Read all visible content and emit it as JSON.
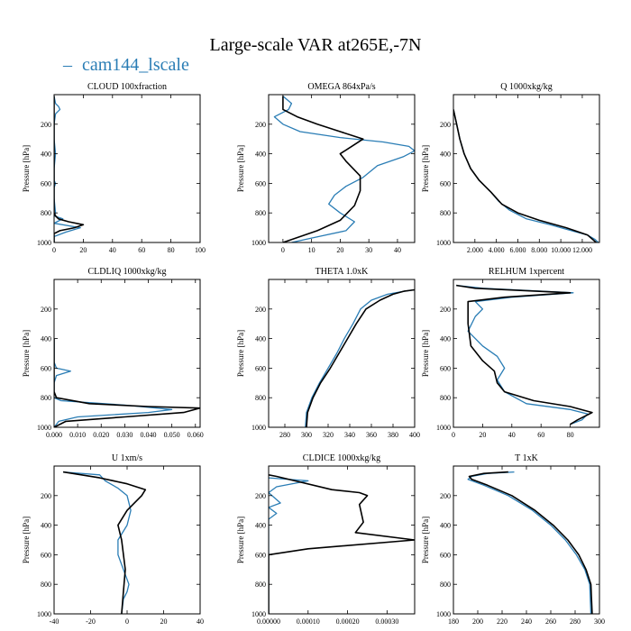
{
  "figure": {
    "title": "Large-scale VAR at265E,-7N",
    "legend": {
      "dash": "–",
      "label": "cam144_lscale"
    }
  },
  "colors": {
    "series_lscale": "#2a7db5",
    "series_ref": "#000000"
  },
  "chart_data": [
    {
      "type": "line",
      "title": "CLOUD  100xfraction",
      "ylabel": "Pressure [hPa]",
      "xlim": [
        0,
        100
      ],
      "ylim": [
        1000,
        0
      ],
      "xticks": [
        0,
        20,
        40,
        60,
        80,
        100
      ],
      "xtick_labels": [
        "0",
        "20",
        "40",
        "60",
        "80",
        "100"
      ],
      "yticks": [
        200,
        400,
        600,
        800,
        1000
      ],
      "ytick_labels": [
        "200",
        "400",
        "600",
        "800",
        "1000"
      ],
      "series": [
        {
          "name": "cam144_lscale",
          "x": [
            0,
            1,
            3,
            4,
            1,
            0,
            0,
            1,
            0,
            0,
            1,
            0,
            0,
            1,
            0,
            6,
            2,
            0,
            12,
            18,
            8,
            0,
            0
          ],
          "y": [
            10,
            60,
            80,
            100,
            130,
            200,
            300,
            400,
            500,
            580,
            600,
            630,
            700,
            800,
            820,
            840,
            860,
            870,
            890,
            900,
            930,
            960,
            1000
          ]
        },
        {
          "name": "reference",
          "x": [
            0,
            0,
            0,
            0,
            0,
            0,
            1,
            3,
            10,
            20,
            14,
            4,
            0,
            0
          ],
          "y": [
            10,
            200,
            400,
            600,
            700,
            800,
            820,
            840,
            860,
            880,
            900,
            920,
            940,
            1000
          ]
        }
      ]
    },
    {
      "type": "line",
      "title": "OMEGA  864xPa/s",
      "ylabel": "Pressure [hPa]",
      "xlim": [
        -5,
        46
      ],
      "ylim": [
        1000,
        0
      ],
      "xticks": [
        0,
        10,
        20,
        30,
        40
      ],
      "xtick_labels": [
        "0",
        "10",
        "20",
        "30",
        "40"
      ],
      "yticks": [
        200,
        400,
        600,
        800,
        1000
      ],
      "ytick_labels": [
        "200",
        "400",
        "600",
        "800",
        "1000"
      ],
      "series": [
        {
          "name": "cam144_lscale",
          "x": [
            0,
            3,
            2,
            -3,
            0,
            6,
            20,
            35,
            44,
            46,
            42,
            33,
            28,
            22,
            18,
            16,
            20,
            25,
            22,
            10,
            3
          ],
          "y": [
            10,
            60,
            100,
            150,
            200,
            250,
            290,
            320,
            350,
            380,
            420,
            480,
            560,
            620,
            680,
            740,
            800,
            860,
            920,
            970,
            1000
          ]
        },
        {
          "name": "reference",
          "x": [
            0,
            0,
            5,
            12,
            20,
            28,
            24,
            20,
            22,
            27,
            27,
            25,
            20,
            12,
            3,
            0
          ],
          "y": [
            10,
            100,
            150,
            200,
            250,
            300,
            350,
            400,
            450,
            550,
            650,
            750,
            850,
            920,
            980,
            1000
          ]
        }
      ]
    },
    {
      "type": "line",
      "title": "Q  1000xkg/kg",
      "ylabel": "Pressure [hPa]",
      "xlim": [
        0,
        13600
      ],
      "ylim": [
        1000,
        0
      ],
      "xticks": [
        2000,
        4000,
        6000,
        8000,
        10000,
        12000
      ],
      "xtick_labels": [
        "2.000",
        "4.000",
        "6.000",
        "8.000",
        "10.000",
        "12.000"
      ],
      "yticks": [
        200,
        400,
        600,
        800,
        1000
      ],
      "ytick_labels": [
        "200",
        "400",
        "600",
        "800",
        "1000"
      ],
      "series": [
        {
          "name": "cam144_lscale",
          "x": [
            0,
            300,
            600,
            1000,
            1600,
            2400,
            3500,
            4200,
            5200,
            6800,
            9000,
            11000,
            12500,
            13200,
            13500
          ],
          "y": [
            100,
            200,
            300,
            400,
            500,
            580,
            660,
            720,
            780,
            840,
            880,
            920,
            950,
            980,
            1000
          ]
        },
        {
          "name": "reference",
          "x": [
            0,
            300,
            600,
            1000,
            1600,
            2400,
            3500,
            4500,
            6000,
            8000,
            10500,
            12500,
            13300
          ],
          "y": [
            100,
            200,
            300,
            400,
            500,
            580,
            660,
            740,
            800,
            850,
            900,
            950,
            1000
          ]
        }
      ]
    },
    {
      "type": "line",
      "title": "CLDLIQ  1000xkg/kg",
      "ylabel": "Pressure [hPa]",
      "xlim": [
        0,
        0.062
      ],
      "ylim": [
        1000,
        0
      ],
      "xticks": [
        0,
        0.01,
        0.02,
        0.03,
        0.04,
        0.05,
        0.06
      ],
      "xtick_labels": [
        "0.000",
        "0.010",
        "0.020",
        "0.030",
        "0.040",
        "0.050",
        "0.060"
      ],
      "yticks": [
        200,
        400,
        600,
        800,
        1000
      ],
      "ytick_labels": [
        "200",
        "400",
        "600",
        "800",
        "1000"
      ],
      "series": [
        {
          "name": "cam144_lscale",
          "x": [
            0,
            0,
            0.001,
            0.007,
            0.001,
            0,
            0,
            0.003,
            0.03,
            0.05,
            0.04,
            0.01,
            0.002,
            0
          ],
          "y": [
            400,
            560,
            600,
            620,
            650,
            700,
            800,
            820,
            850,
            880,
            900,
            930,
            960,
            1000
          ]
        },
        {
          "name": "reference",
          "x": [
            0,
            0,
            0.001,
            0.015,
            0.04,
            0.062,
            0.055,
            0.03,
            0.005,
            0
          ],
          "y": [
            400,
            760,
            800,
            840,
            860,
            870,
            900,
            930,
            960,
            1000
          ]
        }
      ]
    },
    {
      "type": "line",
      "title": "THETA  1.0xK",
      "ylabel": "Pressure [hPa]",
      "xlim": [
        265,
        400
      ],
      "ylim": [
        1000,
        0
      ],
      "xticks": [
        280,
        300,
        320,
        340,
        360,
        380,
        400
      ],
      "xtick_labels": [
        "280",
        "300",
        "320",
        "340",
        "360",
        "380",
        "400"
      ],
      "yticks": [
        200,
        400,
        600,
        800,
        1000
      ],
      "ytick_labels": [
        "200",
        "400",
        "600",
        "800",
        "1000"
      ],
      "series": [
        {
          "name": "cam144_lscale",
          "x": [
            400,
            390,
            375,
            360,
            350,
            343,
            335,
            328,
            320,
            312,
            305,
            300,
            299
          ],
          "y": [
            70,
            80,
            100,
            140,
            200,
            300,
            400,
            500,
            600,
            700,
            800,
            900,
            1000
          ]
        },
        {
          "name": "reference",
          "x": [
            400,
            390,
            380,
            368,
            355,
            346,
            338,
            330,
            322,
            313,
            306,
            301,
            300
          ],
          "y": [
            70,
            80,
            100,
            140,
            200,
            300,
            400,
            500,
            600,
            700,
            800,
            900,
            1000
          ]
        }
      ]
    },
    {
      "type": "line",
      "title": "RELHUM  1xpercent",
      "ylabel": "Pressure [hPa]",
      "xlim": [
        0,
        100
      ],
      "ylim": [
        1000,
        0
      ],
      "xticks": [
        0,
        20,
        40,
        60,
        80
      ],
      "xtick_labels": [
        "0",
        "20",
        "40",
        "60",
        "80"
      ],
      "yticks": [
        200,
        400,
        600,
        800,
        1000
      ],
      "ytick_labels": [
        "200",
        "400",
        "600",
        "800",
        "1000"
      ],
      "series": [
        {
          "name": "cam144_lscale",
          "x": [
            2,
            20,
            82,
            40,
            15,
            20,
            15,
            10,
            20,
            30,
            35,
            30,
            35,
            50,
            80,
            92,
            88,
            80
          ],
          "y": [
            40,
            60,
            90,
            120,
            150,
            200,
            250,
            350,
            450,
            520,
            600,
            680,
            760,
            840,
            880,
            910,
            950,
            980
          ]
        },
        {
          "name": "reference",
          "x": [
            2,
            15,
            80,
            35,
            10,
            10,
            10,
            12,
            20,
            28,
            30,
            35,
            55,
            80,
            95,
            85,
            80
          ],
          "y": [
            40,
            60,
            90,
            120,
            150,
            200,
            300,
            450,
            550,
            620,
            700,
            760,
            820,
            860,
            900,
            950,
            980
          ]
        }
      ]
    },
    {
      "type": "line",
      "title": "U  1xm/s",
      "ylabel": "Pressure [hPa]",
      "xlim": [
        -40,
        40
      ],
      "ylim": [
        1000,
        0
      ],
      "xticks": [
        -40,
        -20,
        0,
        20,
        40
      ],
      "xtick_labels": [
        "-40",
        "-20",
        "0",
        "20",
        "40"
      ],
      "yticks": [
        200,
        400,
        600,
        800,
        1000
      ],
      "ytick_labels": [
        "200",
        "400",
        "600",
        "800",
        "1000"
      ],
      "series": [
        {
          "name": "cam144_lscale",
          "x": [
            -35,
            -15,
            -12,
            -5,
            0,
            2,
            0,
            -5,
            -5,
            -2,
            1,
            0,
            -2,
            -3
          ],
          "y": [
            40,
            60,
            100,
            150,
            200,
            300,
            400,
            500,
            600,
            700,
            800,
            850,
            900,
            1000
          ]
        },
        {
          "name": "reference",
          "x": [
            -35,
            -25,
            -15,
            0,
            10,
            8,
            0,
            -5,
            -3,
            -1,
            -2,
            -3
          ],
          "y": [
            40,
            60,
            80,
            120,
            160,
            200,
            300,
            400,
            500,
            700,
            850,
            1000
          ]
        }
      ]
    },
    {
      "type": "line",
      "title": "CLDICE  1000xkg/kg",
      "ylabel": "Pressure [hPa]",
      "xlim": [
        0,
        0.00037
      ],
      "ylim": [
        1000,
        0
      ],
      "xticks": [
        0,
        0.0001,
        0.0002,
        0.0003
      ],
      "xtick_labels": [
        "0.00000",
        "0.00010",
        "0.00020",
        "0.00030"
      ],
      "yticks": [
        200,
        400,
        600,
        800,
        1000
      ],
      "ytick_labels": [
        "200",
        "400",
        "600",
        "800",
        "1000"
      ],
      "series": [
        {
          "name": "cam144_lscale",
          "x": [
            0,
            0.0001,
            2e-05,
            0,
            3e-05,
            0,
            2e-05,
            0,
            0
          ],
          "y": [
            80,
            100,
            140,
            180,
            250,
            280,
            320,
            360,
            1000
          ]
        },
        {
          "name": "reference",
          "x": [
            0,
            2e-05,
            0.00016,
            0.00023,
            0.00025,
            0.00023,
            0.00024,
            0.00022,
            0.00037,
            0.0001,
            0,
            0
          ],
          "y": [
            60,
            70,
            160,
            180,
            200,
            260,
            380,
            450,
            500,
            560,
            600,
            1000
          ]
        }
      ]
    },
    {
      "type": "line",
      "title": "T  1xK",
      "ylabel": "Pressure [hPa]",
      "xlim": [
        180,
        300
      ],
      "ylim": [
        1000,
        0
      ],
      "xticks": [
        180,
        200,
        220,
        240,
        260,
        280,
        300
      ],
      "xtick_labels": [
        "180",
        "200",
        "220",
        "240",
        "260",
        "280",
        "300"
      ],
      "yticks": [
        200,
        400,
        600,
        800,
        1000
      ],
      "ytick_labels": [
        "200",
        "400",
        "600",
        "800",
        "1000"
      ],
      "series": [
        {
          "name": "cam144_lscale",
          "x": [
            230,
            208,
            195,
            192,
            205,
            225,
            245,
            260,
            272,
            281,
            288,
            292,
            293
          ],
          "y": [
            40,
            50,
            70,
            90,
            130,
            200,
            300,
            400,
            500,
            600,
            700,
            800,
            1000
          ]
        },
        {
          "name": "reference",
          "x": [
            225,
            205,
            193,
            195,
            208,
            228,
            247,
            262,
            274,
            283,
            289,
            293,
            294
          ],
          "y": [
            40,
            50,
            70,
            90,
            130,
            200,
            300,
            400,
            500,
            600,
            700,
            800,
            1000
          ]
        }
      ]
    }
  ]
}
